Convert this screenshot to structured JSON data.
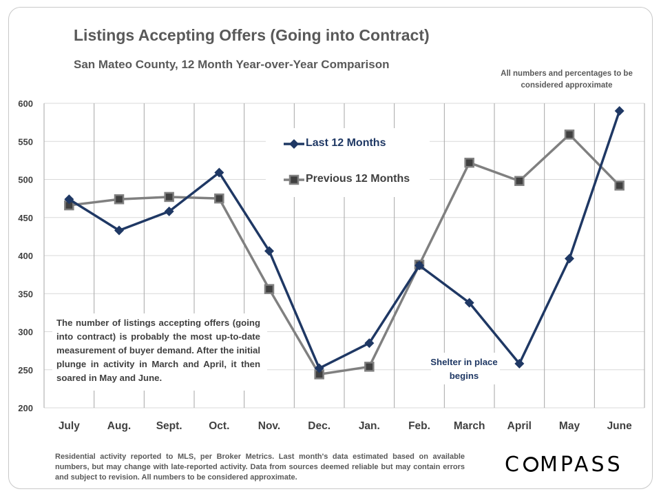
{
  "title": "Listings Accepting Offers (Going into Contract)",
  "subtitle": "San Mateo County, 12 Month Year-over-Year  Comparison",
  "note": "All numbers and percentages to be considered approximate",
  "annotation": "The number of listings accepting offers (going into contract) is probably the most up-to-date measurement of buyer demand. After the initial plunge in activity in March and April, it then soared in May and June.",
  "shelter_label": "Shelter in place begins",
  "footer": "Residential activity reported to MLS, per Broker Metrics. Last month's data estimated based on available numbers, but may change with late-reported activity. Data from sources deemed reliable but may contain errors and subject to revision. All numbers to be considered approximate.",
  "logo": {
    "before": "C",
    "after": "MPASS"
  },
  "colors": {
    "last": "#1f3864",
    "previous": "#808080",
    "marker_prev": "#404040"
  },
  "chart_data": {
    "type": "line",
    "title": "Listings Accepting Offers (Going into Contract)",
    "categories": [
      "July",
      "Aug.",
      "Sept.",
      "Oct.",
      "Nov.",
      "Dec.",
      "Jan.",
      "Feb.",
      "March",
      "April",
      "May",
      "June"
    ],
    "ylim": [
      200,
      600
    ],
    "yticks": [
      200,
      250,
      300,
      350,
      400,
      450,
      500,
      550,
      600
    ],
    "grid": "vertical and horizontal",
    "legend_position": "upper-center",
    "series": [
      {
        "name": "Last 12 Months",
        "values": [
          474,
          433,
          458,
          509,
          406,
          252,
          285,
          387,
          338,
          258,
          396,
          590
        ]
      },
      {
        "name": "Previous 12 Months",
        "values": [
          466,
          474,
          477,
          475,
          356,
          244,
          254,
          388,
          522,
          498,
          559,
          492
        ]
      }
    ]
  }
}
